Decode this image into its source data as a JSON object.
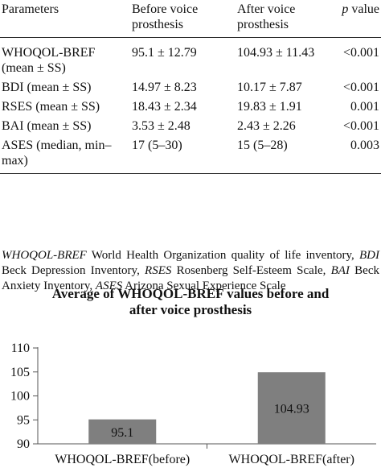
{
  "table": {
    "headers": [
      "Parameters",
      "Before voice\nprosthesis",
      "After voice\nprosthesis",
      "p value"
    ],
    "rows": [
      [
        "WHOQOL-BREF\n(mean ± SS)",
        "95.1 ± 12.79",
        "104.93 ± 11.43",
        "<0.001"
      ],
      [
        "BDI (mean ± SS)",
        "14.97 ± 8.23",
        "10.17 ± 7.87",
        "<0.001"
      ],
      [
        "RSES (mean ± SS)",
        "18.43 ± 2.34",
        "19.83 ± 1.91",
        "0.001"
      ],
      [
        "BAI (mean ± SS)",
        "3.53 ± 2.48",
        "2.43 ± 2.26",
        "<0.001"
      ],
      [
        "ASES (median, min–\nmax)",
        "17 (5–30)",
        "15 (5–28)",
        "0.003"
      ]
    ]
  },
  "footnote": {
    "items": [
      {
        "abbr": "WHOQOL-BREF",
        "text": " World Health Organization quality of life inventory, "
      },
      {
        "abbr": "BDI",
        "text": " Beck Depression Inventory, "
      },
      {
        "abbr": "RSES",
        "text": " Rosenberg Self-Esteem Scale, "
      },
      {
        "abbr": "BAI",
        "text": " Beck Anxiety Inventory, "
      },
      {
        "abbr": "ASES",
        "text": " Arizona Sexual Experience Scale"
      }
    ]
  },
  "chart_data": {
    "type": "bar",
    "title": "Average of WHOQOL-BREF values before and after voice prosthesis",
    "categories": [
      "WHOQOL-BREF(before)",
      "WHOQOL-BREF(after)"
    ],
    "values": [
      95.1,
      104.93
    ],
    "data_labels": [
      "95.1",
      "104.93"
    ],
    "yticks": [
      90,
      95,
      100,
      105,
      110
    ],
    "ylim": [
      90,
      110
    ],
    "grid": false,
    "bar_color": "#7f7f7f",
    "xlabel": "",
    "ylabel": ""
  }
}
